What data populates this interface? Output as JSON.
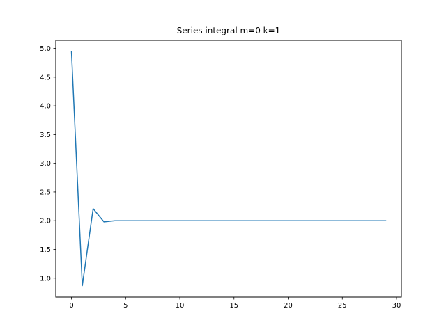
{
  "chart_data": {
    "type": "line",
    "title": "Series integral m=0 k=1",
    "xlabel": "",
    "ylabel": "",
    "xlim": [
      -1.45,
      30.45
    ],
    "ylim": [
      0.67,
      5.14
    ],
    "xticks": [
      0,
      5,
      10,
      15,
      20,
      25,
      30
    ],
    "yticks": [
      1.0,
      1.5,
      2.0,
      2.5,
      3.0,
      3.5,
      4.0,
      4.5,
      5.0
    ],
    "grid": false,
    "series": [
      {
        "color": "#1f77b4",
        "x": [
          0,
          1,
          2,
          3,
          4,
          5,
          6,
          7,
          8,
          9,
          10,
          11,
          12,
          13,
          14,
          15,
          16,
          17,
          18,
          19,
          20,
          21,
          22,
          23,
          24,
          25,
          26,
          27,
          28,
          29
        ],
        "y": [
          4.94,
          0.87,
          2.21,
          1.98,
          2.0,
          2.0,
          2.0,
          2.0,
          2.0,
          2.0,
          2.0,
          2.0,
          2.0,
          2.0,
          2.0,
          2.0,
          2.0,
          2.0,
          2.0,
          2.0,
          2.0,
          2.0,
          2.0,
          2.0,
          2.0,
          2.0,
          2.0,
          2.0,
          2.0,
          2.0
        ]
      }
    ]
  }
}
